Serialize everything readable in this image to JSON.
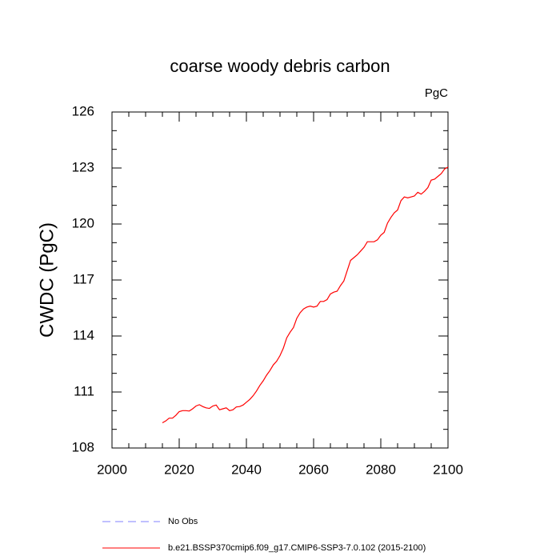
{
  "chart_data": {
    "type": "line",
    "title": "coarse woody debris carbon",
    "units": "PgC",
    "y_label": "CWDC  (PgC)",
    "x": [
      2015,
      2016,
      2017,
      2018,
      2019,
      2020,
      2021,
      2022,
      2023,
      2024,
      2025,
      2026,
      2027,
      2028,
      2029,
      2030,
      2031,
      2032,
      2033,
      2034,
      2035,
      2036,
      2037,
      2038,
      2039,
      2040,
      2041,
      2042,
      2043,
      2044,
      2045,
      2046,
      2047,
      2048,
      2049,
      2050,
      2051,
      2052,
      2053,
      2054,
      2055,
      2056,
      2057,
      2058,
      2059,
      2060,
      2061,
      2062,
      2063,
      2064,
      2065,
      2066,
      2067,
      2068,
      2069,
      2070,
      2071,
      2072,
      2073,
      2074,
      2075,
      2076,
      2077,
      2078,
      2079,
      2080,
      2081,
      2082,
      2083,
      2084,
      2085,
      2086,
      2087,
      2088,
      2089,
      2090,
      2091,
      2092,
      2093,
      2094,
      2095,
      2096,
      2097,
      2098,
      2099,
      2100
    ],
    "series": [
      {
        "name": "No Obs",
        "color": "#8080ff",
        "dash": true
      },
      {
        "name": "b.e21.BSSP370cmip6.f09_g17.CMIP6-SSP3-7.0.102 (2015-2100)",
        "color": "#ff0000",
        "dash": false,
        "values": [
          109.35,
          109.45,
          109.6,
          109.6,
          109.75,
          109.95,
          110.0,
          110.0,
          109.98,
          110.1,
          110.25,
          110.32,
          110.22,
          110.15,
          110.12,
          110.25,
          110.3,
          110.05,
          110.1,
          110.15,
          110.0,
          110.05,
          110.2,
          110.22,
          110.3,
          110.45,
          110.6,
          110.8,
          111.05,
          111.35,
          111.6,
          111.9,
          112.15,
          112.45,
          112.65,
          112.95,
          113.35,
          113.9,
          114.2,
          114.45,
          114.95,
          115.25,
          115.45,
          115.55,
          115.6,
          115.55,
          115.6,
          115.85,
          115.85,
          115.95,
          116.25,
          116.35,
          116.4,
          116.7,
          116.95,
          117.5,
          118.05,
          118.2,
          118.35,
          118.55,
          118.75,
          119.05,
          119.05,
          119.05,
          119.15,
          119.4,
          119.55,
          120.05,
          120.35,
          120.6,
          120.75,
          121.25,
          121.45,
          121.4,
          121.45,
          121.5,
          121.7,
          121.6,
          121.75,
          121.95,
          122.35,
          122.4,
          122.55,
          122.7,
          122.95,
          123.05
        ]
      }
    ],
    "xlim": [
      2000,
      2100
    ],
    "xticks": [
      2000,
      2020,
      2040,
      2060,
      2080,
      2100
    ],
    "xminorticks": [
      2005,
      2010,
      2015,
      2025,
      2030,
      2035,
      2045,
      2050,
      2055,
      2065,
      2070,
      2075,
      2085,
      2090,
      2095
    ],
    "ylim": [
      108,
      126
    ],
    "yticks": [
      108,
      111,
      114,
      117,
      120,
      123,
      126
    ],
    "yminorticks": [
      109,
      110,
      112,
      113,
      115,
      116,
      118,
      119,
      121,
      122,
      124,
      125
    ]
  }
}
